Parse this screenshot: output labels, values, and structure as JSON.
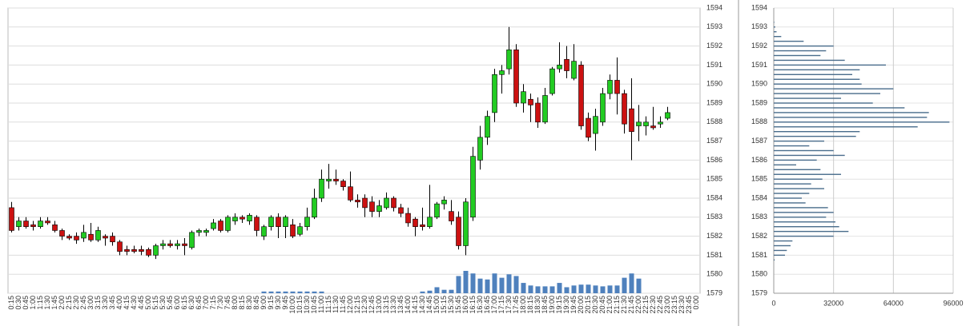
{
  "chart_data": [
    {
      "type": "candlestick",
      "categories": [
        "0:15",
        "0:30",
        "0:45",
        "1:00",
        "1:15",
        "1:30",
        "1:45",
        "2:00",
        "2:15",
        "2:30",
        "2:45",
        "3:00",
        "3:15",
        "3:30",
        "3:45",
        "4:00",
        "4:15",
        "4:30",
        "4:45",
        "5:00",
        "5:15",
        "5:30",
        "5:45",
        "6:00",
        "6:15",
        "6:30",
        "6:45",
        "7:00",
        "7:15",
        "7:30",
        "7:45",
        "8:00",
        "8:15",
        "8:30",
        "8:45",
        "9:00",
        "9:15",
        "9:30",
        "9:45",
        "10:00",
        "10:15",
        "10:30",
        "10:45",
        "11:00",
        "11:15",
        "11:30",
        "11:45",
        "12:00",
        "12:15",
        "12:30",
        "12:45",
        "13:00",
        "13:15",
        "13:30",
        "13:45",
        "14:00",
        "14:15",
        "14:30",
        "14:45",
        "15:00",
        "15:15",
        "15:30",
        "15:45",
        "16:00",
        "16:15",
        "16:30",
        "16:45",
        "17:00",
        "17:15",
        "17:30",
        "17:45",
        "18:00",
        "18:15",
        "18:30",
        "18:45",
        "19:00",
        "19:15",
        "19:30",
        "19:45",
        "20:00",
        "20:15",
        "20:30",
        "20:45",
        "21:00",
        "21:15",
        "21:30",
        "21:45",
        "22:00",
        "22:15",
        "22:30",
        "22:45",
        "23:00",
        "23:15",
        "23:30",
        "23:45",
        "0:00"
      ],
      "open": [
        1583.5,
        1582.5,
        1582.8,
        1582.6,
        1582.5,
        1582.8,
        1582.6,
        1582.3,
        1582.0,
        1582.0,
        1581.9,
        1582.1,
        1581.8,
        1582.0,
        1582.0,
        1581.7,
        1581.3,
        1581.3,
        1581.3,
        1581.3,
        1581.0,
        1581.5,
        1581.6,
        1581.5,
        1581.6,
        1581.4,
        1582.2,
        1582.2,
        1582.4,
        1582.8,
        1582.3,
        1582.8,
        1583.0,
        1582.8,
        1583.0,
        1582.0,
        1582.5,
        1583.0,
        1582.5,
        1582.6,
        1582.1,
        1582.5,
        1583.0,
        1584.0,
        1584.9,
        1585.0,
        1584.9,
        1584.6,
        1583.9,
        1584.0,
        1583.8,
        1583.3,
        1583.5,
        1584.0,
        1583.5,
        1583.2,
        1582.9,
        1582.6,
        1582.5,
        1583.0,
        1583.7,
        1583.3,
        1583.0,
        1581.5,
        1583.0,
        1586.0,
        1587.2,
        1588.5,
        1590.5,
        1590.8,
        1591.8,
        1589.0,
        1589.2,
        1589.0,
        1588.0,
        1589.5,
        1590.8,
        1591.3,
        1590.3,
        1591.0,
        1588.2,
        1587.4,
        1588.0,
        1589.5,
        1590.2,
        1589.5,
        1588.7,
        1587.8,
        1587.8,
        1587.8,
        1587.9,
        1588.2,
        null,
        null,
        null,
        null
      ],
      "high": [
        1583.8,
        1583.0,
        1583.0,
        1582.8,
        1583.0,
        1583.0,
        1582.8,
        1582.4,
        1582.1,
        1582.2,
        1582.6,
        1582.7,
        1582.5,
        1582.1,
        1582.2,
        1581.8,
        1581.5,
        1581.5,
        1581.5,
        1581.4,
        1581.6,
        1581.8,
        1581.8,
        1581.8,
        1581.9,
        1582.3,
        1582.4,
        1582.4,
        1582.9,
        1582.9,
        1583.1,
        1583.2,
        1583.1,
        1583.2,
        1583.1,
        1582.6,
        1583.1,
        1583.2,
        1583.1,
        1582.9,
        1582.7,
        1583.5,
        1584.5,
        1585.5,
        1585.8,
        1585.5,
        1585.0,
        1585.4,
        1584.2,
        1584.2,
        1584.1,
        1583.9,
        1584.3,
        1584.1,
        1583.7,
        1583.5,
        1583.0,
        1583.5,
        1584.7,
        1583.8,
        1584.1,
        1583.9,
        1583.3,
        1584.0,
        1586.7,
        1587.8,
        1588.6,
        1590.8,
        1591.0,
        1593.0,
        1592.1,
        1590.0,
        1589.5,
        1589.3,
        1589.8,
        1590.9,
        1592.2,
        1592.0,
        1592.1,
        1591.2,
        1588.5,
        1588.7,
        1589.8,
        1590.5,
        1591.4,
        1589.7,
        1590.3,
        1588.9,
        1588.3,
        1588.8,
        1588.3,
        1588.8,
        null,
        null,
        null,
        null
      ],
      "low": [
        1582.2,
        1582.3,
        1582.4,
        1582.3,
        1582.4,
        1582.6,
        1582.2,
        1581.8,
        1581.8,
        1581.6,
        1581.7,
        1581.7,
        1581.7,
        1581.5,
        1581.5,
        1581.0,
        1581.0,
        1581.1,
        1581.0,
        1580.9,
        1580.8,
        1581.3,
        1581.4,
        1581.3,
        1581.0,
        1581.3,
        1582.0,
        1582.0,
        1582.3,
        1582.2,
        1582.2,
        1582.6,
        1582.7,
        1582.6,
        1582.0,
        1581.8,
        1582.3,
        1581.9,
        1581.9,
        1581.9,
        1582.0,
        1582.3,
        1582.9,
        1583.8,
        1584.5,
        1584.7,
        1584.4,
        1583.8,
        1583.5,
        1583.0,
        1583.0,
        1583.0,
        1583.4,
        1583.3,
        1583.0,
        1582.5,
        1582.0,
        1582.3,
        1582.4,
        1582.9,
        1583.4,
        1582.6,
        1581.3,
        1581.0,
        1582.8,
        1585.5,
        1586.8,
        1588.0,
        1589.5,
        1590.5,
        1588.8,
        1588.5,
        1588.0,
        1587.7,
        1587.9,
        1589.4,
        1590.6,
        1590.3,
        1590.2,
        1587.6,
        1587.0,
        1586.5,
        1587.8,
        1589.2,
        1588.4,
        1587.4,
        1586.0,
        1587.0,
        1587.3,
        1587.6,
        1587.7,
        1588.1,
        null,
        null,
        null,
        null
      ],
      "close": [
        1582.3,
        1582.8,
        1582.5,
        1582.5,
        1582.8,
        1582.7,
        1582.3,
        1582.0,
        1581.9,
        1581.8,
        1582.2,
        1581.8,
        1582.3,
        1581.9,
        1581.7,
        1581.2,
        1581.2,
        1581.2,
        1581.2,
        1581.0,
        1581.5,
        1581.6,
        1581.5,
        1581.6,
        1581.5,
        1582.2,
        1582.3,
        1582.3,
        1582.7,
        1582.3,
        1583.0,
        1583.0,
        1582.9,
        1583.1,
        1582.3,
        1582.5,
        1583.0,
        1582.5,
        1583.0,
        1582.0,
        1582.5,
        1583.0,
        1584.0,
        1585.0,
        1585.0,
        1584.9,
        1584.6,
        1583.9,
        1583.8,
        1583.5,
        1583.3,
        1583.6,
        1584.0,
        1583.5,
        1583.2,
        1582.7,
        1582.5,
        1582.5,
        1583.0,
        1583.7,
        1583.9,
        1582.8,
        1581.5,
        1583.8,
        1586.2,
        1587.2,
        1588.3,
        1590.5,
        1590.7,
        1591.8,
        1589.0,
        1589.6,
        1588.9,
        1588.0,
        1589.4,
        1590.8,
        1591.0,
        1590.7,
        1591.2,
        1587.8,
        1587.2,
        1588.3,
        1589.5,
        1590.2,
        1589.5,
        1587.9,
        1587.5,
        1588.0,
        1588.0,
        1587.7,
        1588.0,
        1588.5,
        null,
        null,
        null,
        null
      ],
      "volume": [
        0,
        0,
        0,
        0,
        0,
        0,
        0,
        0,
        0,
        0,
        0,
        0,
        0,
        0,
        0,
        0,
        0,
        0,
        0,
        0,
        0,
        0,
        0,
        0,
        0,
        0,
        0,
        0,
        0,
        0,
        0,
        0,
        0,
        0,
        0,
        2,
        2,
        2,
        2,
        2,
        2,
        2,
        2,
        2,
        0,
        0,
        0,
        0,
        0,
        0,
        0,
        0,
        0,
        0,
        0,
        0,
        0,
        2,
        3,
        7,
        4,
        4,
        20,
        26,
        23,
        17,
        16,
        23,
        18,
        22,
        20,
        12,
        9,
        8,
        8,
        8,
        12,
        7,
        9,
        10,
        10,
        9,
        8,
        9,
        9,
        18,
        23,
        17,
        0,
        0,
        0,
        0,
        null,
        null,
        null,
        null
      ],
      "up_color": "#22cc22",
      "down_color": "#cc1111",
      "volume_color": "#4f81bd",
      "ylim": [
        1579,
        1594
      ],
      "yticks": [
        1579,
        1580,
        1581,
        1582,
        1583,
        1584,
        1585,
        1586,
        1587,
        1588,
        1589,
        1590,
        1591,
        1592,
        1593,
        1594
      ],
      "grid": true
    },
    {
      "type": "bar",
      "orientation": "horizontal",
      "y": [
        1593.25,
        1593.0,
        1592.75,
        1592.5,
        1592.25,
        1592.0,
        1591.75,
        1591.5,
        1591.25,
        1591.0,
        1590.75,
        1590.5,
        1590.25,
        1590.0,
        1589.75,
        1589.5,
        1589.25,
        1589.0,
        1588.75,
        1588.5,
        1588.25,
        1588.0,
        1587.75,
        1587.5,
        1587.25,
        1587.0,
        1586.75,
        1586.5,
        1586.25,
        1586.0,
        1585.75,
        1585.5,
        1585.25,
        1585.0,
        1584.75,
        1584.5,
        1584.25,
        1584.0,
        1583.75,
        1583.5,
        1583.25,
        1583.0,
        1582.75,
        1582.5,
        1582.25,
        1582.0,
        1581.75,
        1581.5,
        1581.25,
        1581.0,
        1580.75
      ],
      "values": [
        300,
        800,
        1500,
        4000,
        16000,
        32000,
        28000,
        25000,
        38000,
        60000,
        46000,
        42000,
        46000,
        47000,
        64000,
        57000,
        36000,
        53000,
        70000,
        83000,
        82000,
        94000,
        77000,
        46000,
        44000,
        27000,
        19000,
        32000,
        38000,
        23000,
        12000,
        25000,
        36000,
        26000,
        20000,
        27000,
        19000,
        15000,
        17000,
        29000,
        32000,
        28000,
        33000,
        35000,
        40000,
        32000,
        10000,
        9000,
        7000,
        6000,
        500
      ],
      "color": "#4a6d8c",
      "xlim": [
        0,
        96000
      ],
      "xticks": [
        0,
        32000,
        64000,
        96000
      ],
      "ylim": [
        1579,
        1594
      ],
      "yticks": [
        1579,
        1580,
        1581,
        1582,
        1583,
        1584,
        1585,
        1586,
        1587,
        1588,
        1589,
        1590,
        1591,
        1592,
        1593,
        1594
      ],
      "grid": true
    }
  ]
}
